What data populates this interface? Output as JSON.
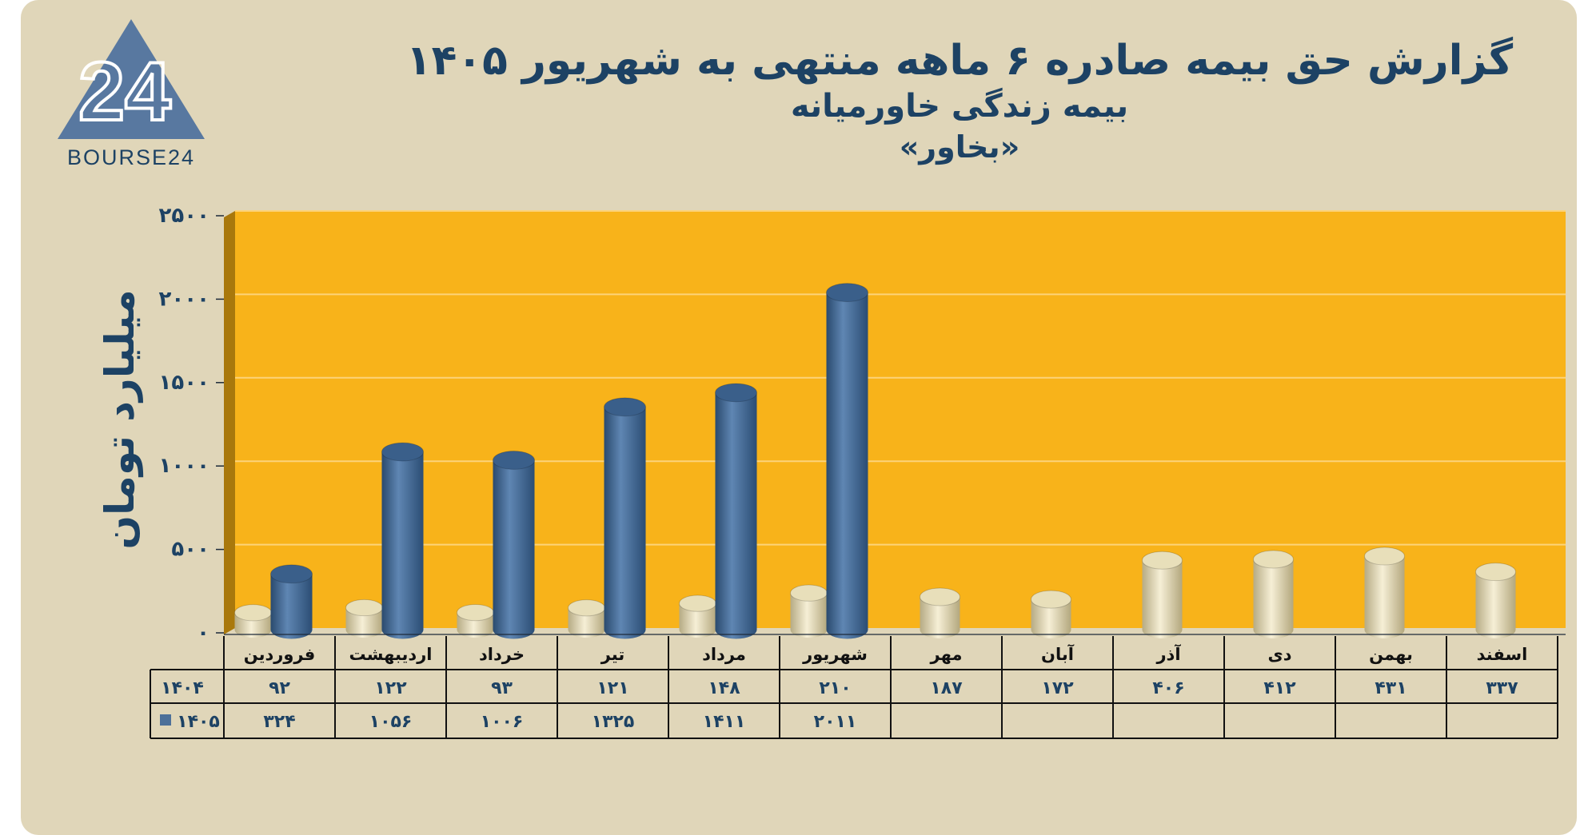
{
  "header": {
    "title": "گزارش  حق بیمه صادره ۶ ماهه منتهی به شهریور ۱۴۰۵",
    "subtitle": "بیمه زندگی خاورمیانه",
    "ticker": "«بخاور»"
  },
  "logo": {
    "number": "24",
    "name": "BOURSE24"
  },
  "chart_data": {
    "type": "bar",
    "title": "گزارش  حق بیمه صادره ۶ ماهه منتهی به شهریور ۱۴۰۵",
    "ylabel": "میلیارد تومان",
    "ylim": [
      0,
      2500
    ],
    "yticks": [
      0,
      500,
      1000,
      1500,
      2000,
      2500
    ],
    "ytick_labels": [
      "۰",
      "۵۰۰",
      "۱۰۰۰",
      "۱۵۰۰",
      "۲۰۰۰",
      "۲۵۰۰"
    ],
    "grid": true,
    "categories": [
      "فروردین",
      "اردیبهشت",
      "خرداد",
      "تیر",
      "مرداد",
      "شهریور",
      "مهر",
      "آبان",
      "آذر",
      "دی",
      "بهمن",
      "اسفند"
    ],
    "series": [
      {
        "name": "۱۴۰۴",
        "values": [
          92,
          122,
          93,
          121,
          148,
          210,
          187,
          172,
          406,
          412,
          431,
          337
        ],
        "labels": [
          "۹۲",
          "۱۲۲",
          "۹۳",
          "۱۲۱",
          "۱۴۸",
          "۲۱۰",
          "۱۸۷",
          "۱۷۲",
          "۴۰۶",
          "۴۱۲",
          "۴۳۱",
          "۳۳۷"
        ]
      },
      {
        "name": "۱۴۰۵",
        "values": [
          324,
          1056,
          1006,
          1325,
          1411,
          2011,
          null,
          null,
          null,
          null,
          null,
          null
        ],
        "labels": [
          "۳۲۴",
          "۱۰۵۶",
          "۱۰۰۶",
          "۱۳۲۵",
          "۱۴۱۱",
          "۲۰۱۱",
          "",
          "",
          "",
          "",
          "",
          ""
        ]
      }
    ]
  },
  "colors": {
    "background": "#e0d6b9",
    "plot_area": "#f8b31a",
    "series_1404": "#e7ddb8",
    "series_1405": "#4d7099",
    "text": "#1d4264"
  }
}
